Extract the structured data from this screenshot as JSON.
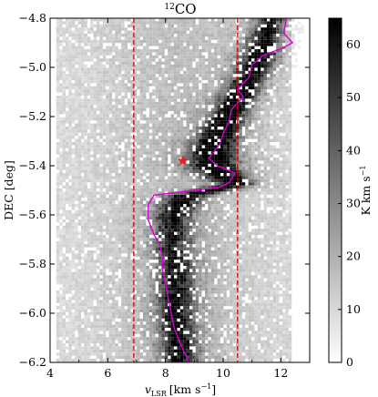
{
  "chart_data": {
    "type": "heatmap",
    "title": "CO",
    "title_superscript": "12",
    "xlabel": {
      "symbol": "v",
      "subscript": "LSR",
      "unit": "[km s",
      "unit_exp": "−1",
      "unit_close": "]"
    },
    "ylabel": "DEC [deg]",
    "xlim": [
      4,
      13
    ],
    "ylim": [
      -6.2,
      -4.8
    ],
    "x_ticks": [
      4,
      6,
      8,
      10,
      12
    ],
    "x_tick_labels": [
      "4",
      "6",
      "8",
      "10",
      "12"
    ],
    "y_ticks": [
      -6.2,
      -6.0,
      -5.8,
      -5.6,
      -5.4,
      -5.2,
      -5.0,
      -4.8
    ],
    "y_tick_labels": [
      "−6.2",
      "−6.0",
      "−5.8",
      "−5.6",
      "−5.4",
      "−5.2",
      "−5.0",
      "−4.8"
    ],
    "grid": false,
    "colormap": "gray_r",
    "colorbar": {
      "label": "K km s",
      "label_exp": "−1",
      "range": [
        0,
        65
      ],
      "ticks": [
        0,
        10,
        20,
        30,
        40,
        50,
        60
      ],
      "tick_labels": [
        "0",
        "10",
        "20",
        "30",
        "40",
        "50",
        "60"
      ]
    },
    "vertical_lines": [
      {
        "x": 6.9,
        "color": "#cc0000",
        "style": "dashed"
      },
      {
        "x": 10.5,
        "color": "#cc0000",
        "style": "dashed"
      }
    ],
    "marker": {
      "x": 8.6,
      "y": -5.38,
      "symbol": "star",
      "color": "#e8201c"
    },
    "ridge_line": {
      "color": "#d400d4",
      "points": [
        [
          12.2,
          -4.8
        ],
        [
          12.1,
          -4.86
        ],
        [
          12.4,
          -4.9
        ],
        [
          12.1,
          -4.92
        ],
        [
          11.4,
          -4.95
        ],
        [
          11.0,
          -4.99
        ],
        [
          10.9,
          -5.04
        ],
        [
          10.5,
          -5.09
        ],
        [
          10.7,
          -5.12
        ],
        [
          10.3,
          -5.17
        ],
        [
          10.2,
          -5.22
        ],
        [
          10.0,
          -5.27
        ],
        [
          9.9,
          -5.31
        ],
        [
          9.7,
          -5.34
        ],
        [
          9.5,
          -5.37
        ],
        [
          9.8,
          -5.4
        ],
        [
          10.4,
          -5.43
        ],
        [
          10.2,
          -5.47
        ],
        [
          9.8,
          -5.49
        ],
        [
          9.0,
          -5.5
        ],
        [
          8.3,
          -5.51
        ],
        [
          7.6,
          -5.52
        ],
        [
          7.4,
          -5.56
        ],
        [
          7.4,
          -5.62
        ],
        [
          7.6,
          -5.68
        ],
        [
          7.8,
          -5.72
        ],
        [
          7.9,
          -5.77
        ],
        [
          7.9,
          -5.82
        ],
        [
          8.0,
          -5.88
        ],
        [
          8.1,
          -5.94
        ],
        [
          8.2,
          -6.0
        ],
        [
          8.3,
          -6.06
        ],
        [
          8.5,
          -6.12
        ],
        [
          8.7,
          -6.17
        ],
        [
          8.8,
          -6.2
        ]
      ]
    },
    "emission_ridge": [
      {
        "y": -4.8,
        "v": 11.6,
        "peak": 40,
        "width": 0.45
      },
      {
        "y": -4.87,
        "v": 11.4,
        "peak": 55,
        "width": 0.5
      },
      {
        "y": -4.95,
        "v": 11.2,
        "peak": 58,
        "width": 0.55
      },
      {
        "y": -5.05,
        "v": 10.8,
        "peak": 52,
        "width": 0.55
      },
      {
        "y": -5.15,
        "v": 10.3,
        "peak": 56,
        "width": 0.55
      },
      {
        "y": -5.25,
        "v": 9.9,
        "peak": 62,
        "width": 0.6
      },
      {
        "y": -5.32,
        "v": 9.6,
        "peak": 65,
        "width": 0.65
      },
      {
        "y": -5.4,
        "v": 9.6,
        "peak": 60,
        "width": 0.75
      },
      {
        "y": -5.47,
        "v": 10.4,
        "peak": 58,
        "width": 0.6
      },
      {
        "y": -5.52,
        "v": 8.6,
        "peak": 48,
        "width": 0.6
      },
      {
        "y": -5.6,
        "v": 8.2,
        "peak": 42,
        "width": 0.55
      },
      {
        "y": -5.7,
        "v": 8.2,
        "peak": 38,
        "width": 0.55
      },
      {
        "y": -5.8,
        "v": 8.3,
        "peak": 40,
        "width": 0.55
      },
      {
        "y": -5.9,
        "v": 8.3,
        "peak": 42,
        "width": 0.55
      },
      {
        "y": -6.0,
        "v": 8.3,
        "peak": 46,
        "width": 0.55
      },
      {
        "y": -6.1,
        "v": 8.4,
        "peak": 48,
        "width": 0.55
      },
      {
        "y": -6.2,
        "v": 8.5,
        "peak": 45,
        "width": 0.5
      }
    ]
  }
}
